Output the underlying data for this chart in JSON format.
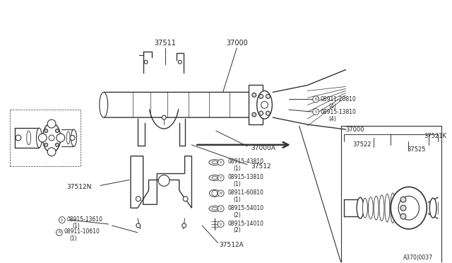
{
  "bg_color": "#ffffff",
  "line_color": "#333333",
  "label_color": "#222222",
  "parts": {
    "main_shaft_label": "37000",
    "center_bearing_label": "37511",
    "bearing_support_label": "37512",
    "bearing_support_n_label": "37512N",
    "bearing_support_a_label": "37512A",
    "shaft_label": "37000A",
    "right_part1": "37000",
    "right_part2": "37521K",
    "right_part3": "37522",
    "right_part4": "37525",
    "tr1_text": "N08911-20810",
    "tr1_qty": "(4)",
    "tr2_text": "V08915-13810",
    "tr2_qty": "(4)",
    "bc_labels": [
      {
        "sym": "V",
        "num": "08915-43810",
        "qty": "(1)"
      },
      {
        "sym": "V",
        "num": "08915-13810",
        "qty": "(1)"
      },
      {
        "sym": "N",
        "num": "08911-60810",
        "qty": "(1)"
      },
      {
        "sym": "V",
        "num": "08915-54010",
        "qty": "(2)"
      },
      {
        "sym": "V",
        "num": "08915-14010",
        "qty": "(2)"
      }
    ],
    "bl1_sym": "V",
    "bl1_num": "08915-13610",
    "bl1_qty": "(1)",
    "bl2_sym": "N",
    "bl2_num": "08911-10610",
    "bl2_qty": "(1)",
    "ref_num": "A370|0037"
  }
}
